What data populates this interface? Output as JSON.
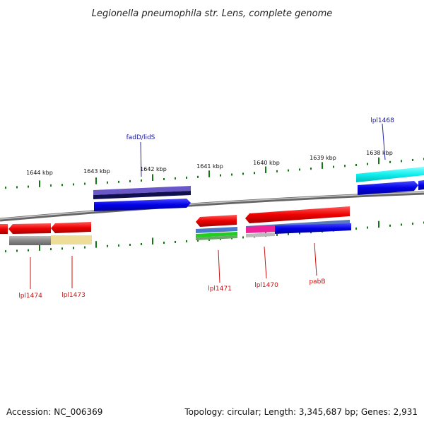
{
  "title": "Legionella pneumophila str. Lens, complete genome",
  "scale_ticks": [
    "1644 kbp",
    "1643 kbp",
    "1642 kbp",
    "1641 kbp",
    "1640 kbp",
    "1639 kbp",
    "1638 kbp"
  ],
  "genes_top": [
    "fadD/lidS",
    "lpl1468"
  ],
  "genes_bottom": [
    "lpl1474",
    "lpl1473",
    "lpl1471",
    "lpl1470",
    "pabB"
  ],
  "footer": {
    "accession": "Accession: NC_006369",
    "summary": "Topology: circular; Length: 3,345,687 bp; Genes: 2,931"
  },
  "colors": {
    "backbone": "#888888",
    "forward_gene": "#0000ee",
    "reverse_gene": "#ee0000",
    "tick": "#117711",
    "label_top": "#1515a0",
    "label_bottom": "#cc1111"
  }
}
